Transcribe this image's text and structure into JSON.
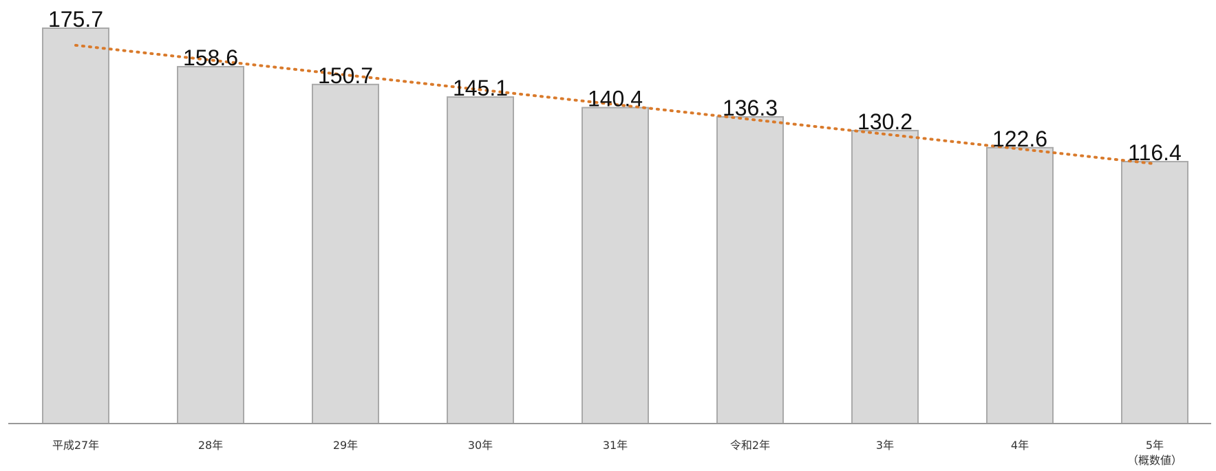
{
  "chart_data": {
    "type": "bar",
    "title": "",
    "xlabel": "",
    "ylabel": "",
    "categories": [
      "平成27年",
      "28年",
      "29年",
      "30年",
      "31年",
      "令和2年",
      "3年",
      "4年",
      "5年"
    ],
    "category_sublabels": [
      "",
      "",
      "",
      "",
      "",
      "",
      "",
      "",
      "（概数値）"
    ],
    "values": [
      175.7,
      158.6,
      150.7,
      145.1,
      140.4,
      136.3,
      130.2,
      122.6,
      116.4
    ],
    "value_labels": [
      "175.7",
      "158.6",
      "150.7",
      "145.1",
      "140.4",
      "136.3",
      "130.2",
      "122.6",
      "116.4"
    ],
    "ylim": [
      0,
      175.7
    ],
    "grid": false,
    "legend": "none",
    "trendline": {
      "type": "linear",
      "style": "dotted"
    },
    "colors": {
      "bar_fill": "#d9d9d9",
      "bar_stroke": "#a9a9a9",
      "trendline": "#d97a2b",
      "axis": "#999999",
      "text": "#111111"
    }
  }
}
